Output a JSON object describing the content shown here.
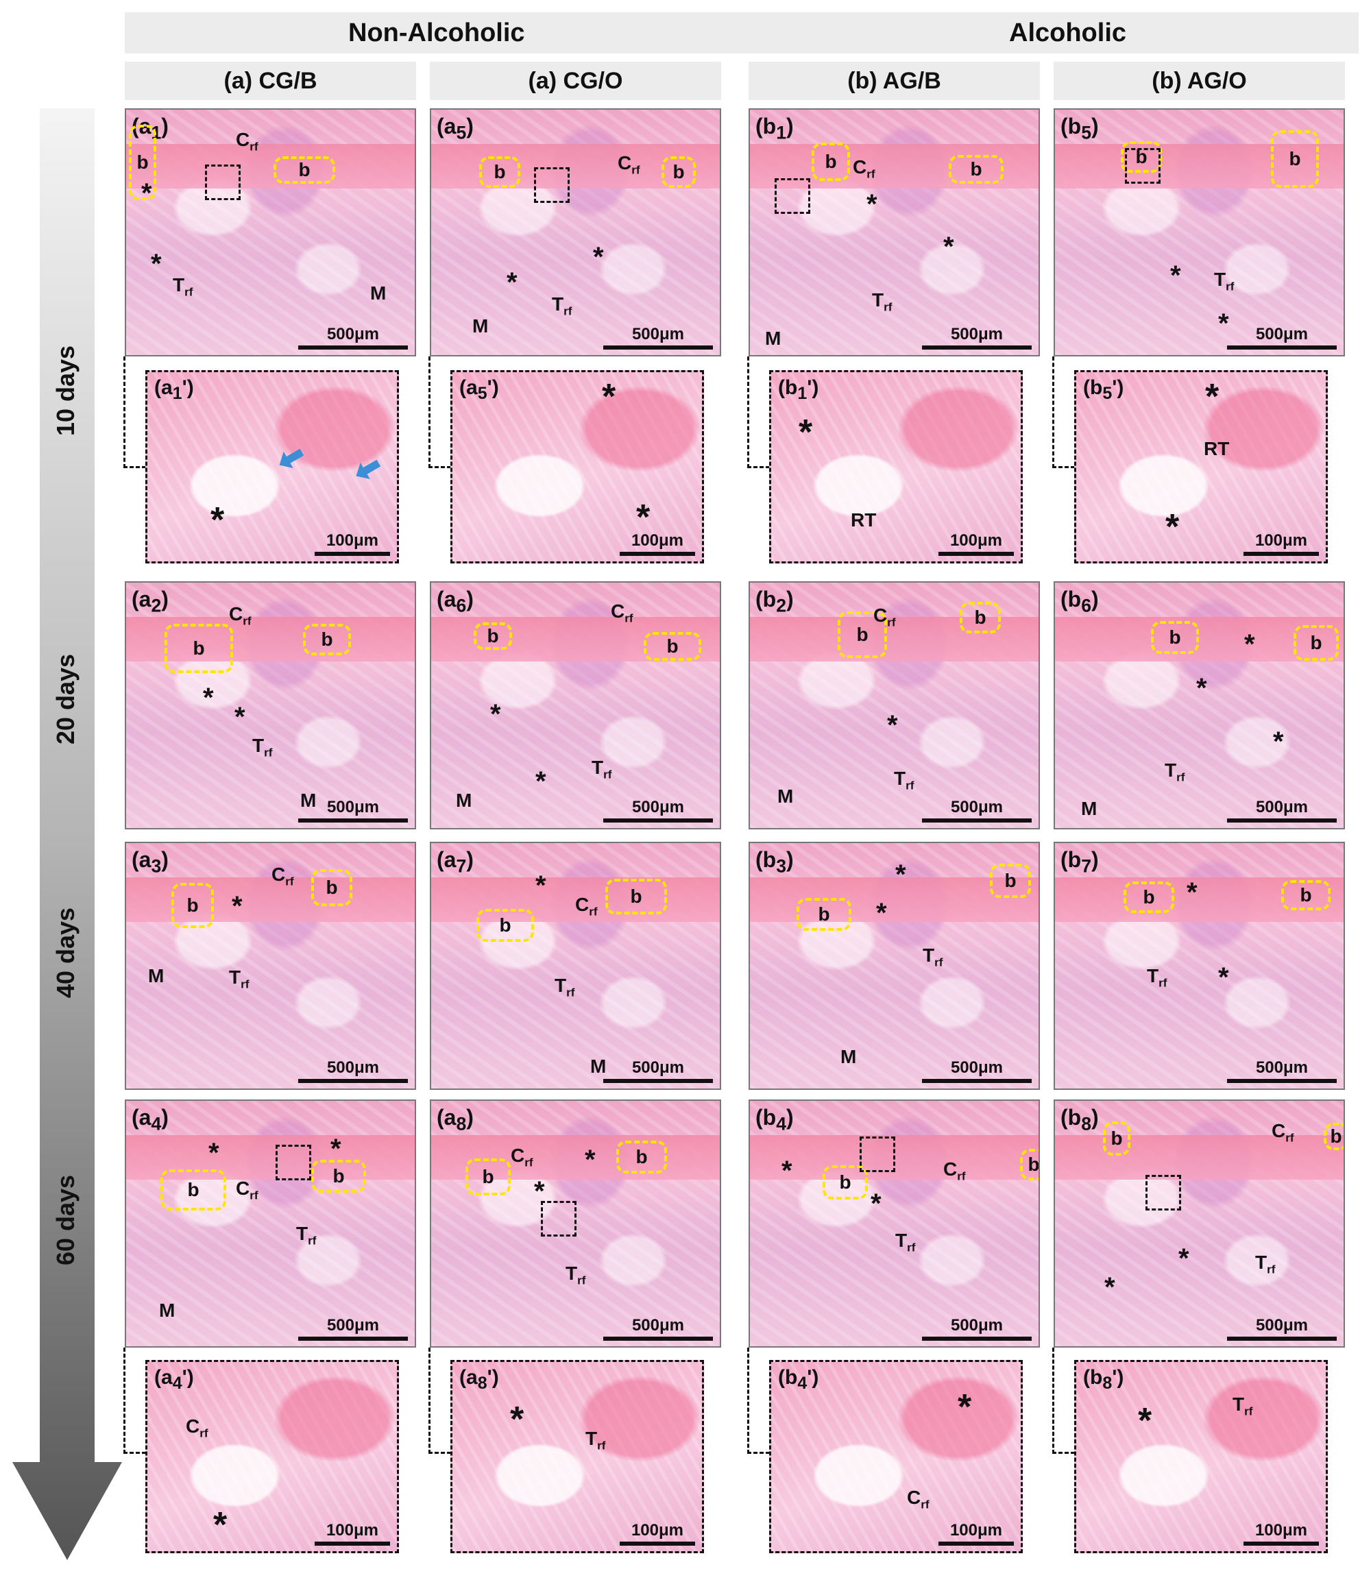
{
  "groups": {
    "left": "Non-Alcoholic",
    "right": "Alcoholic"
  },
  "columns": [
    "(a) CG/B",
    "(a) CG/O",
    "(b) AG/B",
    "(b) AG/O"
  ],
  "days": [
    "10 days",
    "20 days",
    "40 days",
    "60 days"
  ],
  "scale": {
    "large": "500μm",
    "small": "100μm"
  },
  "labels": {
    "b": "b",
    "C": "C",
    "T": "T",
    "rf": "rf",
    "M": "M",
    "RT": "RT",
    "star": "*"
  },
  "panels": {
    "a1": "(a",
    "a5": "(a",
    "b1": "(b",
    "b5": "(b",
    "n1": "1",
    "n2": "2",
    "n3": "3",
    "n4": "4",
    "n5": "5",
    "n6": "6",
    "n7": "7",
    "n8": "8",
    "close": ")",
    "closep": "')"
  }
}
